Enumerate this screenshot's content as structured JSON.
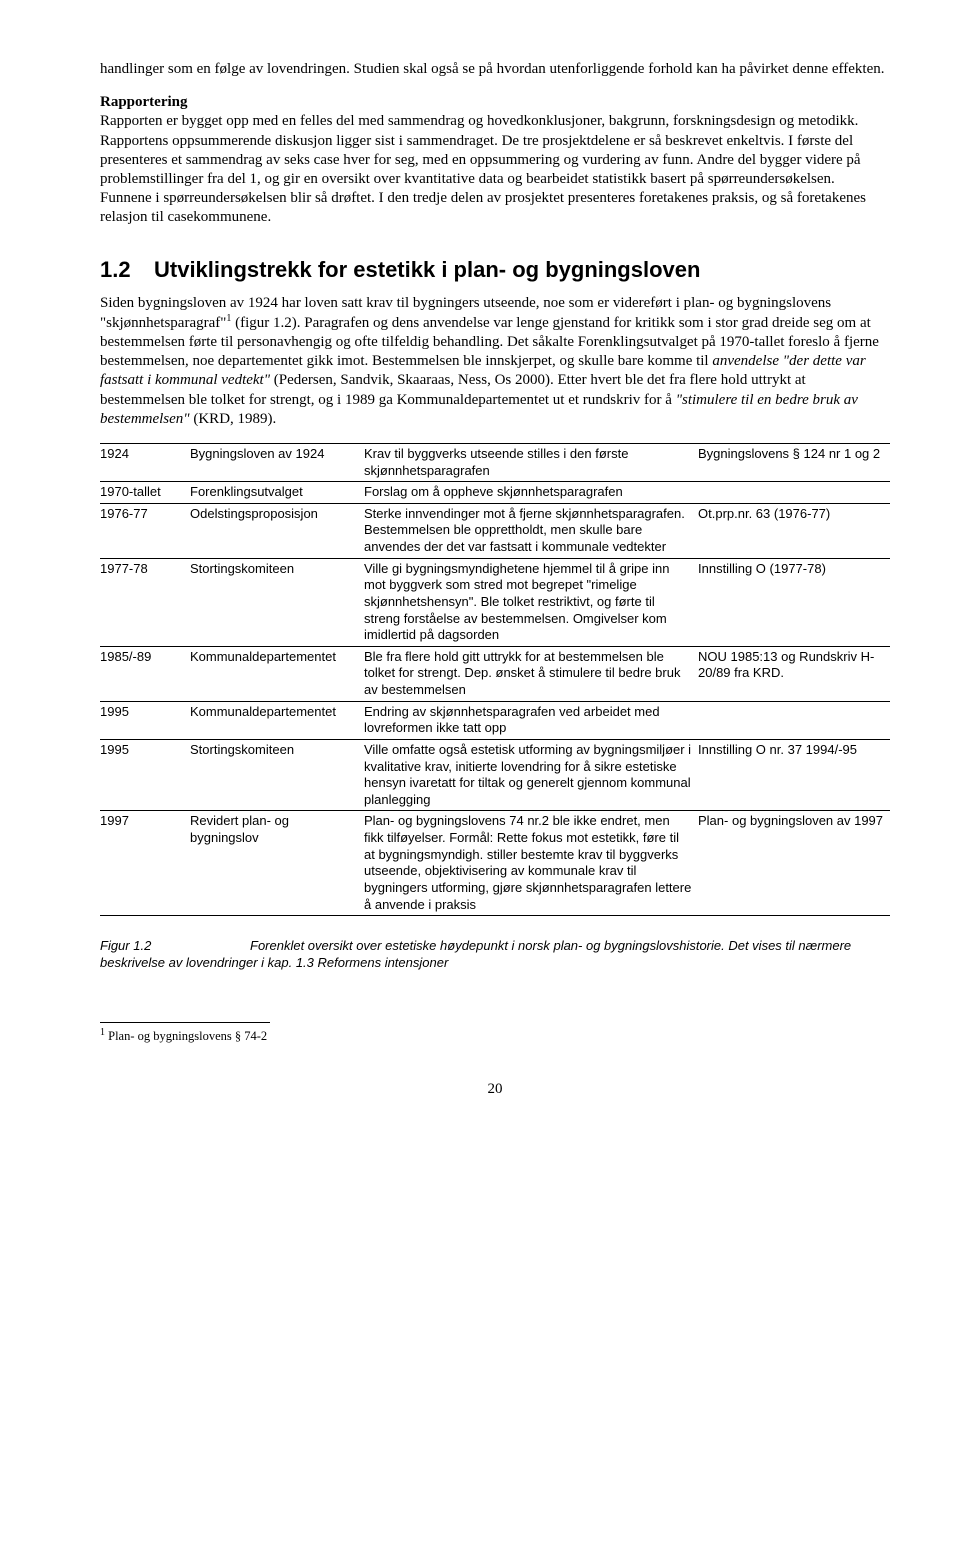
{
  "intro_p1": "handlinger som en følge av lovendringen. Studien skal også se på hvordan utenforliggende forhold kan ha påvirket denne effekten.",
  "rapp_heading": "Rapportering",
  "rapp_body_a": "Rapporten er bygget opp med en felles del med sammendrag og hovedkonklusjoner, bakgrunn, forskningsdesign og metodikk. Rapportens oppsummerende diskusjon ligger sist i sammendraget. De tre prosjektdelene er så beskrevet enkeltvis. I første del presenteres et sammendrag av seks case hver for seg, med en oppsummering og vurdering av funn. Andre del bygger videre på problemstillinger fra del 1, og gir en oversikt over kvantitative data og bearbeidet statistikk basert på spørreundersøkelsen. Funnene i spørreundersøkelsen blir så drøftet. I den tredje delen av prosjektet presenteres foretakenes praksis, og så foretakenes relasjon til casekommunene.",
  "section_num": "1.2",
  "section_title": "Utviklingstrekk for estetikk i plan- og bygningsloven",
  "body_a": "Siden bygningsloven av 1924 har loven satt krav til bygningers utseende, noe som er videreført i plan- og bygningslovens \"skjønnhetsparagraf\"",
  "body_b": " (figur 1.2). Paragrafen og dens anvendelse var lenge gjenstand for kritikk som i stor grad dreide seg om at bestemmelsen førte til personavhengig og ofte tilfeldig behandling. Det såkalte Forenklingsutvalget på 1970-tallet foreslo å fjerne bestemmelsen, noe departementet gikk imot. Bestemmelsen ble innskjerpet, og skulle bare komme til ",
  "body_c_italic": "anvendelse \"der dette var fastsatt i kommunal vedtekt\"",
  "body_d": " (Pedersen, Sandvik, Skaaraas, Ness, Os 2000). Etter hvert ble det fra flere hold uttrykt at bestemmelsen ble tolket for strengt, og i 1989 ga Kommunaldepartementet ut et rundskriv for å ",
  "body_e_italic": "\"stimulere til en bedre bruk av bestemmelsen\"",
  "body_f": " (KRD, 1989).",
  "rows": [
    {
      "c0": "1924",
      "c1": "Bygningsloven av 1924",
      "c2": "Krav til byggverks utseende stilles i den første skjønnhetsparagrafen",
      "c3": "Bygningslovens § 124 nr 1 og 2"
    },
    {
      "c0": "1970-tallet",
      "c1": "Forenklingsutvalget",
      "c2": "Forslag om å oppheve skjønnhetsparagrafen",
      "c3": ""
    },
    {
      "c0": "1976-77",
      "c1": "Odelstingsproposisjon",
      "c2": "Sterke innvendinger mot å fjerne skjønnhetsparagrafen. Bestemmelsen ble opprettholdt, men skulle bare anvendes der det var fastsatt i kommunale vedtekter",
      "c3": "Ot.prp.nr. 63 (1976-77)"
    },
    {
      "c0": "1977-78",
      "c1": "Stortingskomiteen",
      "c2": "Ville gi bygningsmyndighetene hjemmel til å gripe inn mot byggverk som stred mot begrepet \"rimelige skjønnhetshensyn\". Ble tolket restriktivt, og førte til streng forståelse av bestemmelsen. Omgivelser kom imidlertid på dagsorden",
      "c3": "Innstilling O (1977-78)"
    },
    {
      "c0": "1985/-89",
      "c1": "Kommunaldepartementet",
      "c2": "Ble fra flere hold gitt uttrykk for at bestemmelsen ble tolket for strengt. Dep. ønsket å stimulere til bedre bruk av bestemmelsen",
      "c3": "NOU 1985:13 og Rundskriv H-20/89 fra KRD."
    },
    {
      "c0": "1995",
      "c1": "Kommunaldepartementet",
      "c2": "Endring av skjønnhetsparagrafen ved arbeidet med lovreformen ikke tatt opp",
      "c3": ""
    },
    {
      "c0": "1995",
      "c1": "Stortingskomiteen",
      "c2": "Ville omfatte også estetisk utforming av bygningsmiljøer i kvalitative krav, initierte lovendring for å sikre estetiske hensyn ivaretatt for tiltak og generelt gjennom kommunal planlegging",
      "c3": "Innstilling O nr. 37 1994/-95"
    },
    {
      "c0": "1997",
      "c1": "Revidert plan- og bygningslov",
      "c2": "Plan- og bygningslovens 74 nr.2 ble ikke endret, men fikk tilføyelser. Formål: Rette fokus mot estetikk, føre til at bygningsmyndigh. stiller bestemte krav til byggverks utseende, objektivisering av kommunale krav til bygningers utforming, gjøre skjønnhetsparagrafen lettere å anvende i praksis",
      "c3": "Plan- og bygningsloven av 1997"
    }
  ],
  "fig_label": "Figur 1.2",
  "fig_text": "Forenklet oversikt over estetiske høydepunkt i norsk plan- og bygningslovshistorie. Det vises til nærmere beskrivelse av lovendringer i kap. 1.3 Reformens intensjoner",
  "footnote_marker": "1",
  "footnote_text": " Plan- og bygningslovens § 74-2",
  "page_number": "20"
}
